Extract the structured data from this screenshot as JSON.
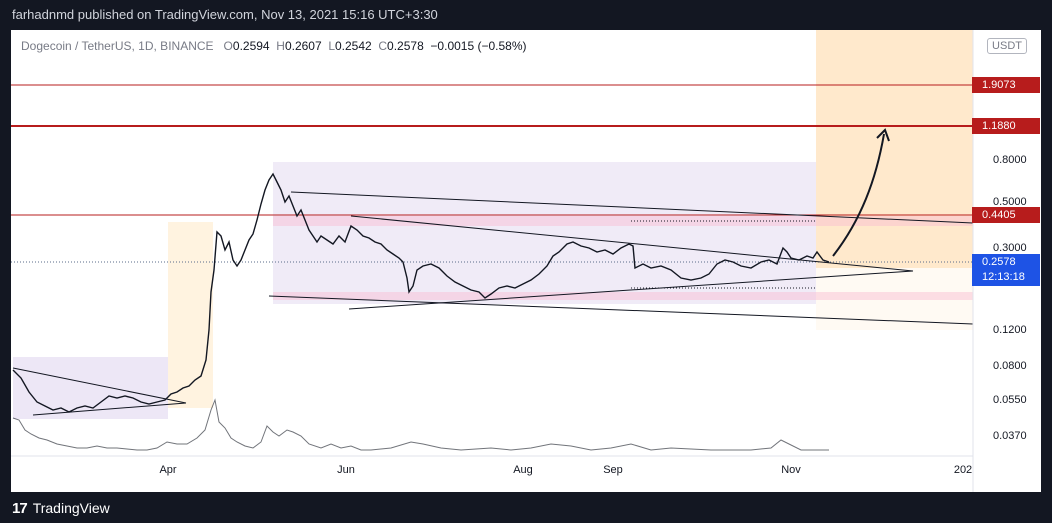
{
  "header": {
    "publisher_line": "farhadnmd published on TradingView.com, Nov 13, 2021 15:16 UTC+3:30"
  },
  "legend": {
    "symbol": "Dogecoin / TetherUS, 1D, BINANCE",
    "open_label": "O",
    "open": "0.2594",
    "high_label": "H",
    "high": "0.2607",
    "low_label": "L",
    "low": "0.2542",
    "close_label": "C",
    "close": "0.2578",
    "change": "−0.0015 (−0.58%)"
  },
  "price_scale": {
    "currency": "USDT",
    "ticks": [
      "0.8000",
      "0.5000",
      "0.3000",
      "0.1200",
      "0.0800",
      "0.0550",
      "0.0370"
    ],
    "levels": [
      {
        "label": "1.9073",
        "color": "#b71c1c"
      },
      {
        "label": "1.1880",
        "color": "#b71c1c"
      },
      {
        "label": "0.4405",
        "color": "#b71c1c"
      }
    ],
    "last_price": "0.2578",
    "countdown": "12:13:18",
    "last_price_color": "#26a69a"
  },
  "time_axis": {
    "ticks": [
      "Apr",
      "Jun",
      "Aug",
      "Sep",
      "Nov",
      "202"
    ]
  },
  "footer": {
    "brand": "TradingView",
    "logo_glyph": "17"
  },
  "colors": {
    "background": "#ffffff",
    "up_candle": "#ffffff",
    "down_candle": "#131722",
    "resistance": "#b71c1c",
    "range_box": "#d1c4e9",
    "target_box": "#ffe0b2"
  }
}
